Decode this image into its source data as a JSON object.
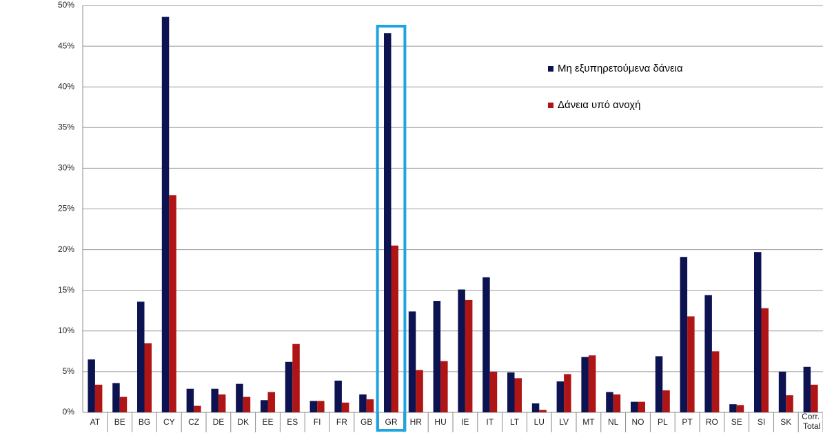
{
  "chart_data": {
    "type": "bar",
    "categories": [
      "AT",
      "BE",
      "BG",
      "CY",
      "CZ",
      "DE",
      "DK",
      "EE",
      "ES",
      "FI",
      "FR",
      "GB",
      "GR",
      "HR",
      "HU",
      "IE",
      "IT",
      "LT",
      "LU",
      "LV",
      "MT",
      "NL",
      "NO",
      "PL",
      "PT",
      "RO",
      "SE",
      "SI",
      "SK",
      "Corr. Total"
    ],
    "series": [
      {
        "name": "Μη εξυπηρετούμενα δάνεια",
        "color": "#0c1350",
        "values": [
          6.5,
          3.6,
          13.6,
          48.6,
          2.9,
          2.9,
          3.5,
          1.5,
          6.2,
          1.4,
          3.9,
          2.2,
          46.6,
          12.4,
          13.7,
          15.1,
          16.6,
          4.9,
          1.1,
          3.8,
          6.8,
          2.5,
          1.3,
          6.9,
          19.1,
          14.4,
          1.0,
          19.7,
          5.0,
          5.6
        ]
      },
      {
        "name": "Δάνεια υπό ανοχή",
        "color": "#b01516",
        "values": [
          3.4,
          1.9,
          8.5,
          26.7,
          0.8,
          2.2,
          1.9,
          2.5,
          8.4,
          1.4,
          1.2,
          1.6,
          20.5,
          5.2,
          6.3,
          13.8,
          5.0,
          4.2,
          0.3,
          4.7,
          7.0,
          2.2,
          1.3,
          2.7,
          11.8,
          7.5,
          0.9,
          12.8,
          2.1,
          3.4
        ]
      }
    ],
    "ylim": [
      0,
      50
    ],
    "yticks": [
      {
        "value": 0,
        "label": "0%"
      },
      {
        "value": 5,
        "label": "5%"
      },
      {
        "value": 10,
        "label": "10%"
      },
      {
        "value": 15,
        "label": "15%"
      },
      {
        "value": 20,
        "label": "20%"
      },
      {
        "value": 25,
        "label": "25%"
      },
      {
        "value": 30,
        "label": "30%"
      },
      {
        "value": 35,
        "label": "35%"
      },
      {
        "value": 40,
        "label": "40%"
      },
      {
        "value": 45,
        "label": "45%"
      },
      {
        "value": 50,
        "label": "50%"
      }
    ],
    "grid": true
  }
}
